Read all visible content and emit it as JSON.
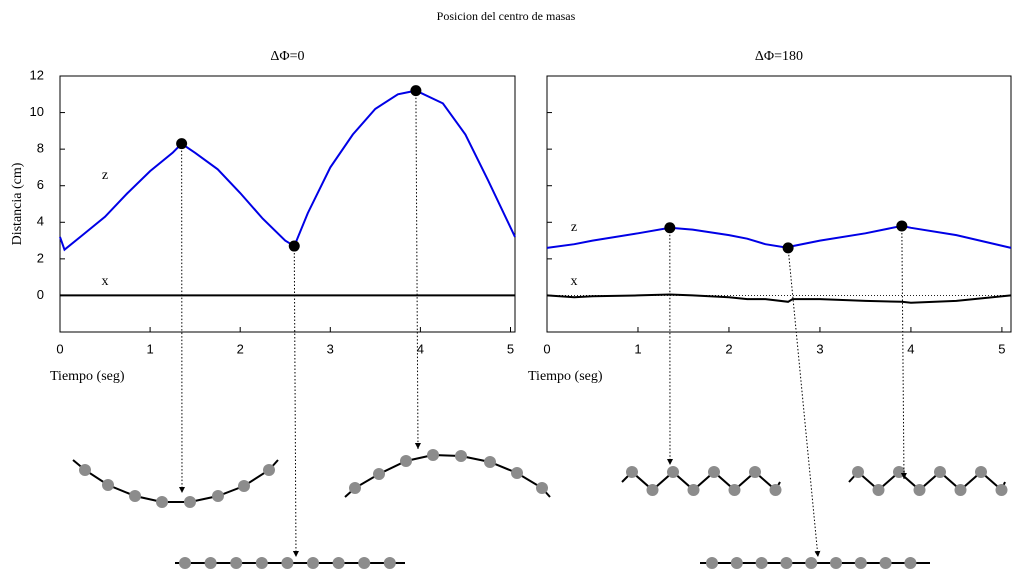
{
  "title": "Posicion del centro de masas",
  "chart_data": [
    {
      "type": "line",
      "title": "ΔΦ=0",
      "ylabel": "Distancia (cm)",
      "xlabel": "Tiempo (seg)",
      "x": [
        0,
        0.05,
        0.25,
        0.5,
        0.75,
        1.0,
        1.25,
        1.35,
        1.5,
        1.75,
        2.0,
        2.25,
        2.5,
        2.6,
        2.75,
        3.0,
        3.25,
        3.5,
        3.75,
        3.95,
        4.25,
        4.5,
        4.75,
        5.05
      ],
      "series": [
        {
          "name": "z",
          "color": "#0000e6",
          "values": [
            3.2,
            2.5,
            3.3,
            4.3,
            5.6,
            6.8,
            7.8,
            8.3,
            7.8,
            6.9,
            5.6,
            4.2,
            3.0,
            2.7,
            4.5,
            7.0,
            8.8,
            10.2,
            11.0,
            11.2,
            10.5,
            8.8,
            6.3,
            3.2
          ]
        },
        {
          "name": "x",
          "color": "#000000",
          "values": [
            0,
            0,
            0,
            0,
            0,
            0,
            0,
            0,
            0,
            0,
            0,
            0,
            0,
            0,
            0,
            0,
            0,
            0,
            0,
            0,
            0,
            0,
            0,
            0
          ]
        }
      ],
      "highlights": {
        "x": [
          1.35,
          2.6,
          3.95
        ],
        "values": [
          8.3,
          2.7,
          11.2
        ]
      },
      "xlim": [
        0,
        5.05
      ],
      "xticks": [
        0,
        1,
        2,
        3,
        4,
        5
      ],
      "ylim": [
        -2,
        12
      ],
      "yticks": [
        0,
        2,
        4,
        6,
        8,
        10,
        12
      ],
      "ytick_labels": true
    },
    {
      "type": "line",
      "title": "ΔΦ=180",
      "xlabel": "Tiempo (seg)",
      "x": [
        0,
        0.3,
        0.5,
        1.0,
        1.35,
        1.6,
        2.0,
        2.2,
        2.4,
        2.65,
        2.7,
        3.0,
        3.5,
        3.9,
        4.0,
        4.5,
        5.1
      ],
      "series": [
        {
          "name": "z",
          "color": "#0000e6",
          "values": [
            2.6,
            2.8,
            3.0,
            3.4,
            3.7,
            3.6,
            3.3,
            3.1,
            2.8,
            2.6,
            2.7,
            3.0,
            3.4,
            3.8,
            3.7,
            3.3,
            2.6
          ]
        },
        {
          "name": "x",
          "color": "#000000",
          "values": [
            0,
            -0.1,
            -0.05,
            0,
            0.05,
            0,
            -0.1,
            -0.2,
            -0.2,
            -0.35,
            -0.2,
            -0.2,
            -0.3,
            -0.35,
            -0.4,
            -0.3,
            0
          ]
        }
      ],
      "highlights": {
        "x": [
          1.35,
          2.65,
          3.9
        ],
        "values": [
          3.7,
          2.6,
          3.8
        ]
      },
      "reference_line": 0,
      "xlim": [
        0,
        5.1
      ],
      "xticks": [
        0,
        1,
        2,
        3,
        4,
        5
      ],
      "ylim": [
        -2,
        12
      ],
      "yticks": [
        0,
        2,
        4,
        6,
        8,
        10,
        12
      ],
      "ytick_labels": false
    }
  ]
}
